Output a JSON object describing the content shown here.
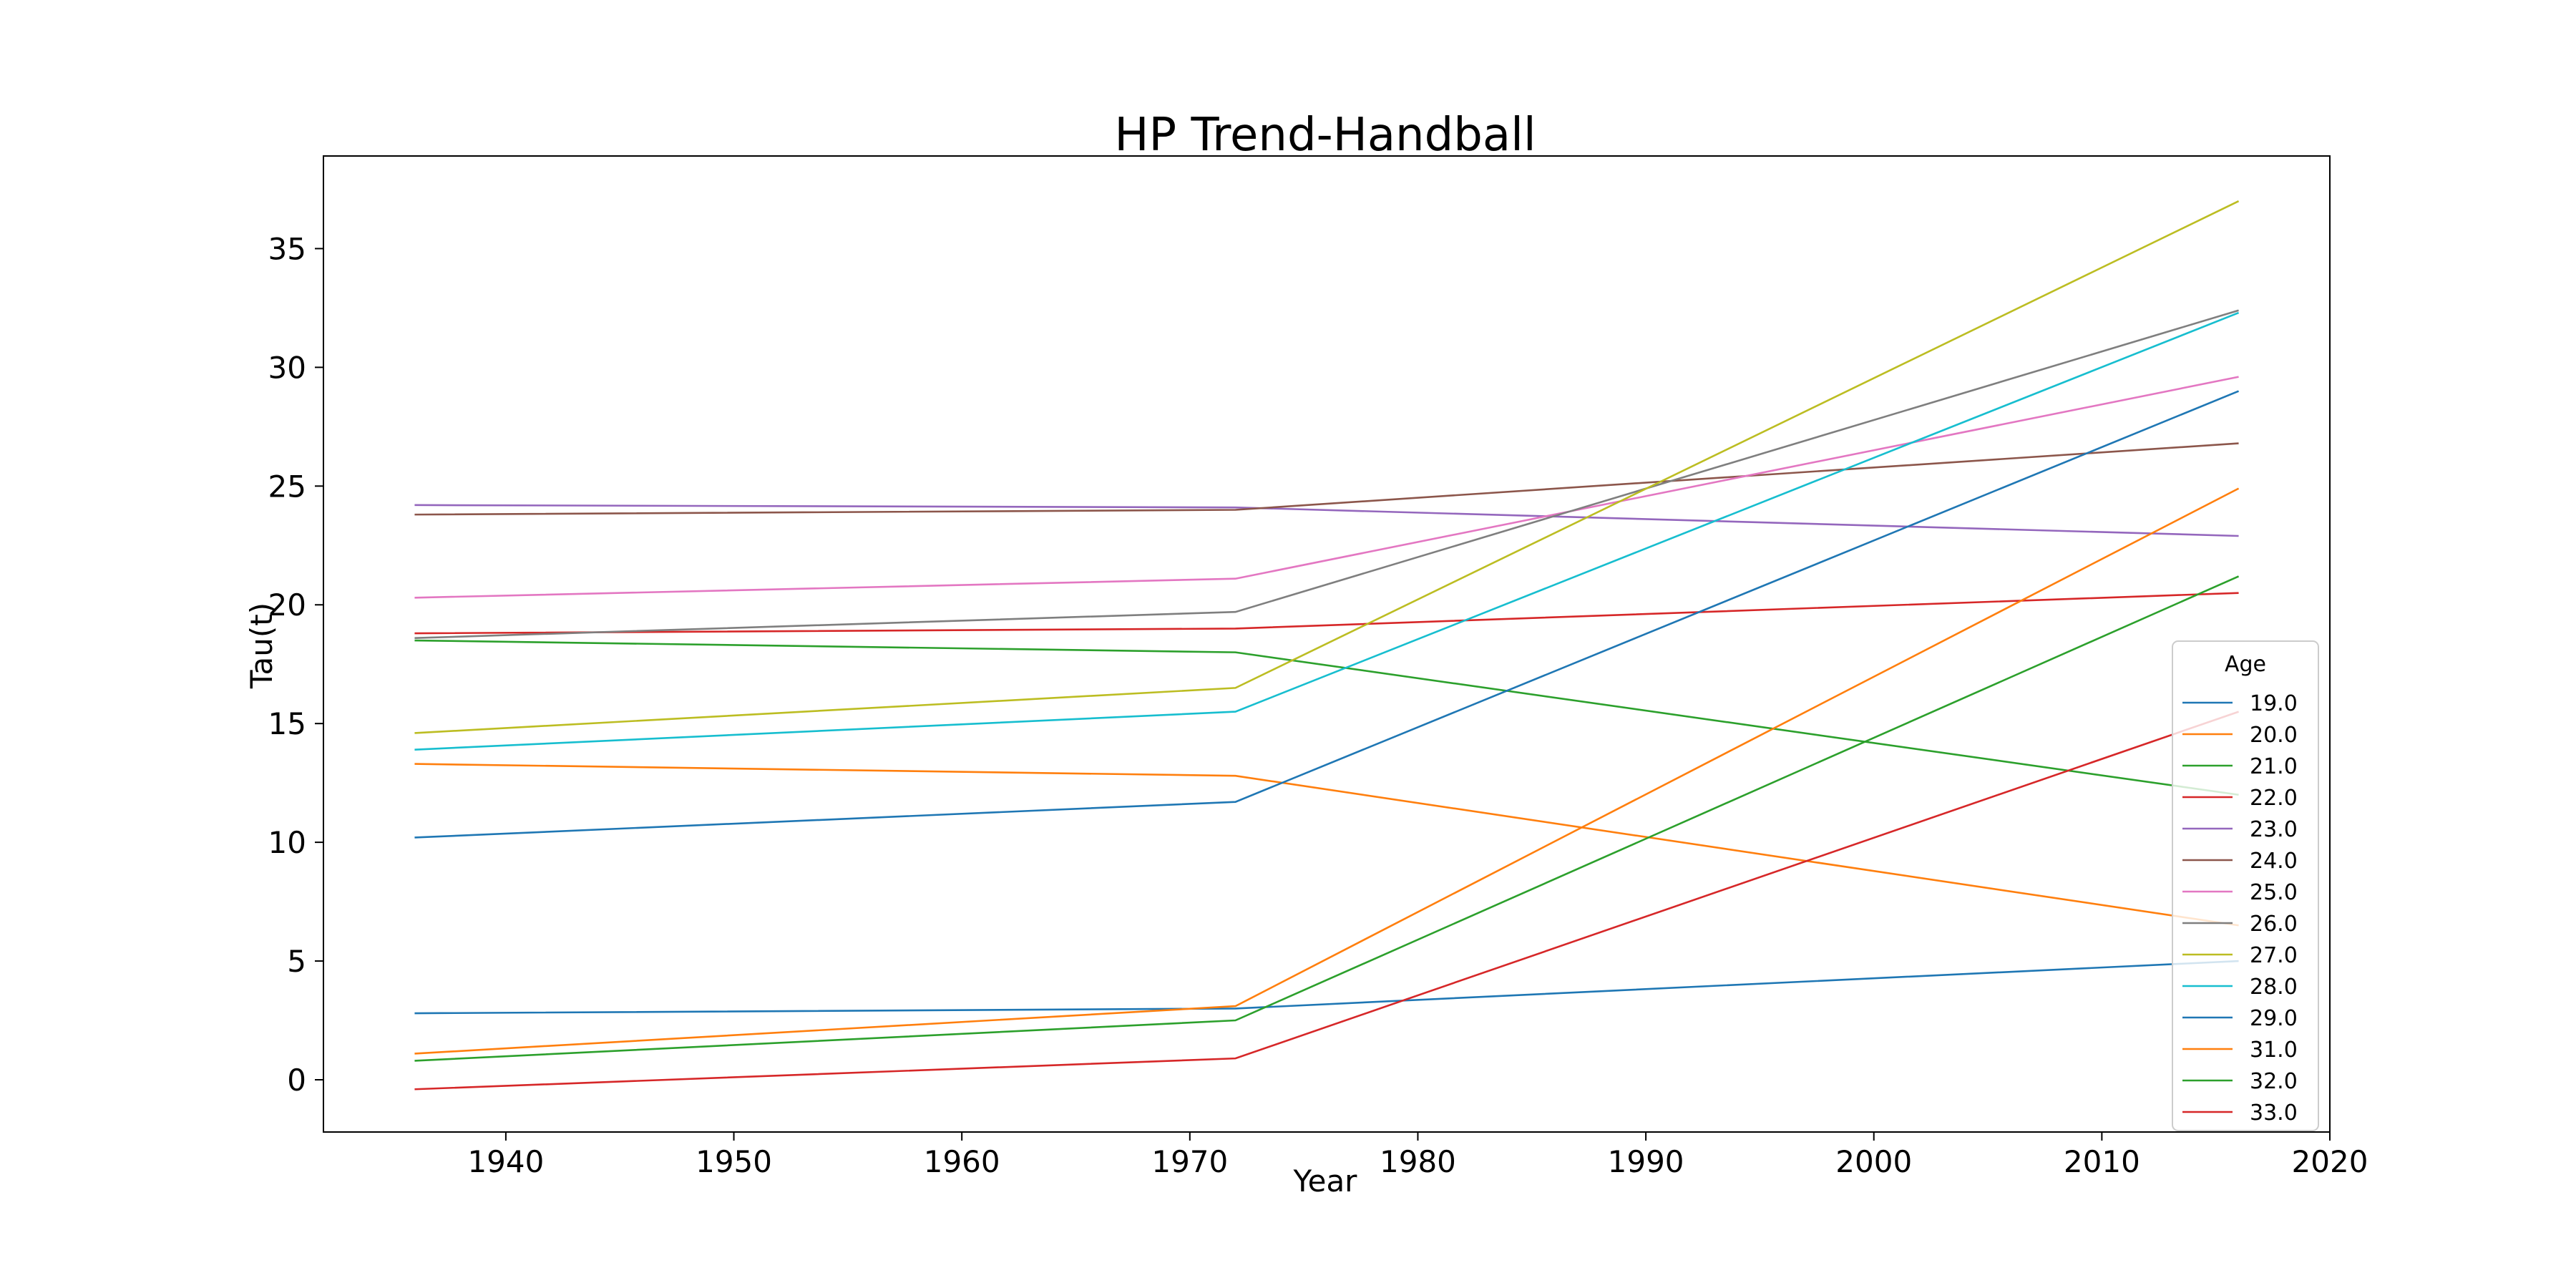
{
  "chart_data": {
    "type": "line",
    "title": "HP Trend-Handball",
    "xlabel": "Year",
    "ylabel": "Tau(t)",
    "xlim": [
      1932,
      2020
    ],
    "ylim": [
      -2.2,
      38.9
    ],
    "xticks": [
      1940,
      1950,
      1960,
      1970,
      1980,
      1990,
      2000,
      2010,
      2020
    ],
    "yticks": [
      0,
      5,
      10,
      15,
      20,
      25,
      30,
      35
    ],
    "grid": false,
    "legend": {
      "title": "Age",
      "placement": "bottom-right"
    },
    "x": [
      1936,
      1972,
      2016
    ],
    "series": [
      {
        "name": "19.0",
        "color": "#1f77b4",
        "values": [
          2.8,
          3.0,
          5.0
        ]
      },
      {
        "name": "20.0",
        "color": "#ff7f0e",
        "values": [
          13.3,
          12.8,
          6.5
        ]
      },
      {
        "name": "21.0",
        "color": "#2ca02c",
        "values": [
          18.5,
          18.0,
          12.0
        ]
      },
      {
        "name": "22.0",
        "color": "#d62728",
        "values": [
          18.8,
          19.0,
          20.5
        ]
      },
      {
        "name": "23.0",
        "color": "#9467bd",
        "values": [
          24.2,
          24.1,
          22.9
        ]
      },
      {
        "name": "24.0",
        "color": "#8c564b",
        "values": [
          23.8,
          24.0,
          26.8
        ]
      },
      {
        "name": "25.0",
        "color": "#e377c2",
        "values": [
          20.3,
          21.1,
          29.6
        ]
      },
      {
        "name": "26.0",
        "color": "#7f7f7f",
        "values": [
          18.6,
          19.7,
          32.4
        ]
      },
      {
        "name": "27.0",
        "color": "#bcbd22",
        "values": [
          14.6,
          16.5,
          37.0
        ]
      },
      {
        "name": "28.0",
        "color": "#17becf",
        "values": [
          13.9,
          15.5,
          32.3
        ]
      },
      {
        "name": "29.0",
        "color": "#1f77b4",
        "values": [
          10.2,
          11.7,
          29.0
        ]
      },
      {
        "name": "31.0",
        "color": "#ff7f0e",
        "values": [
          1.1,
          3.1,
          24.9
        ]
      },
      {
        "name": "32.0",
        "color": "#2ca02c",
        "values": [
          0.8,
          2.5,
          21.2
        ]
      },
      {
        "name": "33.0",
        "color": "#d62728",
        "values": [
          -0.4,
          0.9,
          15.5
        ]
      }
    ]
  }
}
